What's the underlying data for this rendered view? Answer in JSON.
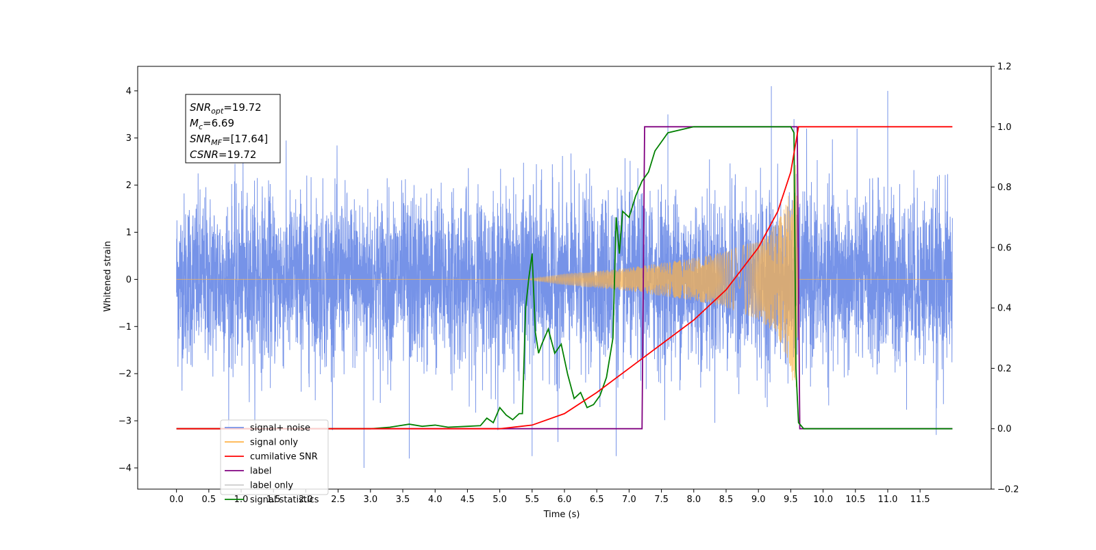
{
  "chart_data": {
    "type": "line",
    "title": "",
    "xlabel": "Time (s)",
    "ylabel": "Whitened strain",
    "xlim": [
      -0.6,
      12.6
    ],
    "ylim": [
      -4.45,
      4.52
    ],
    "y2lim": [
      -0.2,
      1.2
    ],
    "grid": false,
    "legend_position": "lower-left",
    "x_ticks": [
      "0.0",
      "0.5",
      "1.0",
      "1.5",
      "2.0",
      "2.5",
      "3.0",
      "3.5",
      "4.0",
      "4.5",
      "5.0",
      "5.5",
      "6.0",
      "6.5",
      "7.0",
      "7.5",
      "8.0",
      "8.5",
      "9.0",
      "9.5",
      "10.0",
      "10.5",
      "11.0",
      "11.5"
    ],
    "y_ticks": [
      "4",
      "3",
      "2",
      "1",
      "0",
      "−1",
      "−2",
      "−3",
      "−4"
    ],
    "y2_ticks": [
      "1.2",
      "1.0",
      "0.8",
      "0.6",
      "0.4",
      "0.2",
      "0.0",
      "−0.2"
    ],
    "info_box": [
      {
        "var": "SNR",
        "sub": "opt",
        "value": "=19.72"
      },
      {
        "var": "M",
        "sub": "c",
        "value": "=6.69"
      },
      {
        "var": "SNR",
        "sub": "MF",
        "value": "=[17.64]"
      },
      {
        "var": "CSNR",
        "sub": "",
        "value": "=19.72"
      }
    ],
    "series": [
      {
        "name": "signal+ noise",
        "axis": "left",
        "color": "#7693e8",
        "description": "whitened noisy strain, roughly Gaussian with std ~0.9 over 0–12 s",
        "noise_std": 0.9,
        "x_range": [
          0,
          12
        ],
        "spikes": [
          [
            1.25,
            2.15
          ],
          [
            2.9,
            -4.0
          ],
          [
            3.6,
            -3.8
          ],
          [
            5.5,
            -3.75
          ],
          [
            5.9,
            -3.45
          ],
          [
            6.8,
            -3.75
          ],
          [
            7.6,
            3.5
          ],
          [
            9.2,
            4.1
          ],
          [
            9.55,
            3.4
          ],
          [
            11.0,
            4.0
          ],
          [
            11.75,
            -3.3
          ]
        ]
      },
      {
        "name": "signal only",
        "axis": "left",
        "color": "#ffb347",
        "description": "chirp waveform growing in amplitude until merger near 9.6 s",
        "amplitude_x": [
          5.4,
          6.0,
          6.5,
          7.0,
          7.5,
          8.0,
          8.5,
          9.0,
          9.3,
          9.5,
          9.58,
          9.62,
          12.0
        ],
        "amplitude_y": [
          0.0,
          0.12,
          0.18,
          0.25,
          0.35,
          0.45,
          0.6,
          0.85,
          1.2,
          1.9,
          2.6,
          0.0,
          0.0
        ]
      },
      {
        "name": "cumilative SNR",
        "axis": "right",
        "color": "#ff0000",
        "x": [
          0.0,
          5.0,
          5.5,
          6.0,
          6.5,
          7.0,
          7.5,
          8.0,
          8.5,
          9.0,
          9.3,
          9.5,
          9.58,
          9.62,
          12.0
        ],
        "values": [
          0.0,
          0.0,
          0.012,
          0.05,
          0.12,
          0.2,
          0.28,
          0.36,
          0.46,
          0.6,
          0.72,
          0.85,
          0.95,
          1.0,
          1.0
        ]
      },
      {
        "name": "label",
        "axis": "right",
        "color": "#800080",
        "x": [
          0.0,
          7.2,
          7.24,
          9.6,
          9.64,
          12.0
        ],
        "values": [
          0.0,
          0.0,
          1.0,
          1.0,
          0.0,
          0.0
        ]
      },
      {
        "name": "label only",
        "axis": "right",
        "color": "#cccccc",
        "x": [],
        "values": []
      },
      {
        "name": "signal statistics",
        "axis": "right",
        "color": "#008000",
        "x": [
          0.0,
          3.0,
          3.3,
          3.6,
          3.8,
          4.0,
          4.2,
          4.5,
          4.7,
          4.8,
          4.9,
          5.0,
          5.1,
          5.2,
          5.3,
          5.35,
          5.4,
          5.45,
          5.5,
          5.55,
          5.6,
          5.65,
          5.75,
          5.85,
          5.95,
          6.05,
          6.15,
          6.25,
          6.35,
          6.45,
          6.55,
          6.65,
          6.75,
          6.8,
          6.85,
          6.9,
          7.0,
          7.1,
          7.2,
          7.3,
          7.4,
          7.5,
          7.6,
          8.0,
          9.5,
          9.55,
          9.58,
          9.62,
          9.7,
          12.0
        ],
        "values": [
          0.0,
          0.0,
          0.005,
          0.015,
          0.008,
          0.012,
          0.005,
          0.008,
          0.01,
          0.035,
          0.02,
          0.07,
          0.045,
          0.03,
          0.05,
          0.05,
          0.4,
          0.5,
          0.58,
          0.32,
          0.25,
          0.28,
          0.33,
          0.25,
          0.28,
          0.18,
          0.1,
          0.12,
          0.07,
          0.08,
          0.11,
          0.17,
          0.3,
          0.7,
          0.58,
          0.72,
          0.7,
          0.77,
          0.82,
          0.85,
          0.92,
          0.95,
          0.98,
          1.0,
          1.0,
          0.98,
          0.2,
          0.02,
          0.0,
          0.0
        ]
      }
    ]
  }
}
